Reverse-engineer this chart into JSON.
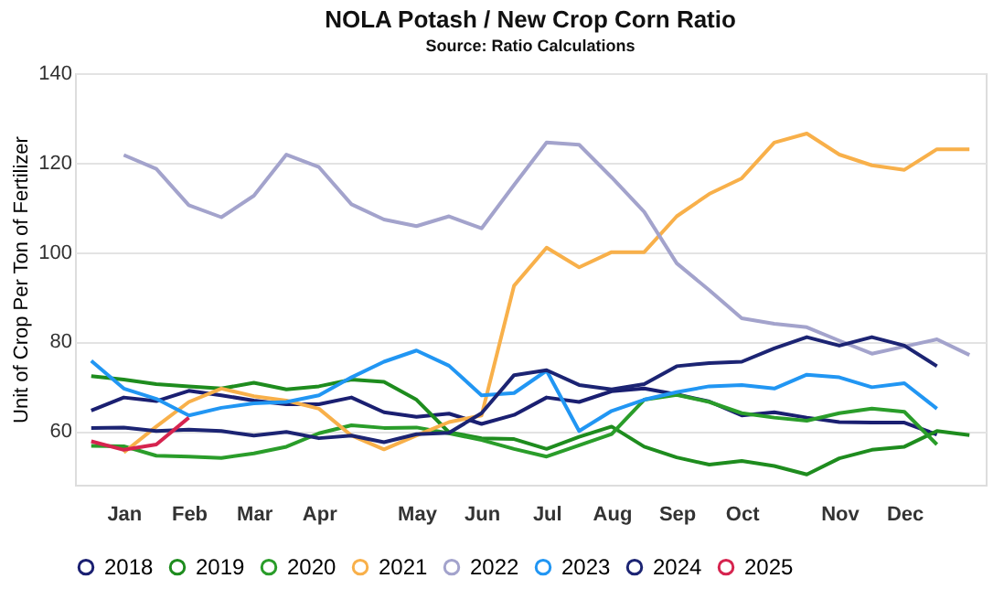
{
  "chart_data": {
    "type": "line",
    "title": "NOLA Potash / New Crop Corn Ratio",
    "subtitle": "Source: Ratio Calculations",
    "ylabel": "Unit of Crop Per Ton of Fertilizer",
    "categories": [
      null,
      "Jan",
      null,
      "Feb",
      null,
      "Mar",
      null,
      "Apr",
      null,
      null,
      "May",
      null,
      "Jun",
      null,
      "Jul",
      null,
      "Aug",
      null,
      "Sep",
      null,
      "Oct",
      null,
      null,
      "Nov",
      null,
      "Dec",
      null,
      null
    ],
    "ylim": [
      48,
      140
    ],
    "yticks": [
      60,
      80,
      100,
      120,
      140
    ],
    "grid": "y",
    "legend": "bottom",
    "marker": "none",
    "line_style": "solid",
    "series": [
      {
        "name": "2018",
        "color": "#1a1f71",
        "values": [
          64.6,
          67.5,
          66.7,
          69,
          68,
          66.8,
          66,
          66,
          67.5,
          64.2,
          63.2,
          63.9,
          61.6,
          63.6,
          67.5,
          66.5,
          68.9,
          69.5,
          68.2,
          66.6,
          63.5,
          64.2,
          63,
          62,
          61.9,
          61.9,
          59.2,
          null
        ]
      },
      {
        "name": "2019",
        "color": "#1e8c1e",
        "values": [
          72.3,
          71.5,
          70.5,
          70,
          69.5,
          70.8,
          69.3,
          70,
          71.5,
          71,
          67,
          59.7,
          58.4,
          58.2,
          56,
          58.7,
          61,
          56.5,
          54.1,
          52.5,
          53.3,
          52.2,
          50.3,
          53.9,
          55.8,
          56.5,
          60,
          59.1
        ]
      },
      {
        "name": "2020",
        "color": "#2a9d2a",
        "values": [
          56.7,
          56.6,
          54.5,
          54.3,
          54,
          55,
          56.5,
          59.5,
          61.3,
          60.7,
          60.8,
          59.5,
          58,
          56,
          54.3,
          56.8,
          59.3,
          67,
          68.1,
          66.5,
          64,
          63,
          62.3,
          64,
          65,
          64.3,
          57,
          null
        ]
      },
      {
        "name": "2021",
        "color": "#f8b04a",
        "values": [
          null,
          55.2,
          61,
          66.5,
          69.5,
          67.8,
          66.8,
          65,
          59,
          55.9,
          59,
          62,
          63.5,
          92.5,
          101,
          96.6,
          100,
          100,
          108,
          113,
          116.5,
          124.5,
          126.5,
          121.8,
          119.4,
          118.4,
          123,
          123
        ]
      },
      {
        "name": "2022",
        "color": "#a3a3cc",
        "values": [
          null,
          121.7,
          118.6,
          110.5,
          107.8,
          112.6,
          121.8,
          119,
          110.7,
          107.3,
          105.8,
          108,
          105.3,
          115,
          124.5,
          124,
          116.7,
          109,
          97.5,
          91.5,
          85.2,
          84,
          83.2,
          80.2,
          77.3,
          78.9,
          80.5,
          77
        ]
      },
      {
        "name": "2023",
        "color": "#2196f3",
        "values": [
          75.7,
          69.5,
          67.2,
          63.5,
          65.2,
          66.2,
          66.5,
          68,
          72,
          75.5,
          78,
          74.6,
          68,
          68.5,
          73.5,
          60,
          64.5,
          67,
          68.7,
          70,
          70.3,
          69.5,
          72.6,
          72,
          69.8,
          70.7,
          65,
          null
        ]
      },
      {
        "name": "2024",
        "color": "#1c2473",
        "values": [
          60.7,
          60.8,
          60,
          60.3,
          60,
          59,
          59.8,
          58.4,
          59,
          57.5,
          59.3,
          59.6,
          64,
          72.5,
          73.6,
          70.3,
          69.3,
          70.5,
          74.5,
          75.2,
          75.5,
          78.5,
          81,
          79.1,
          81,
          79.1,
          74.5,
          null
        ]
      },
      {
        "name": "2025",
        "color": "#d6244f",
        "values": [
          57.7,
          55.8,
          57,
          63,
          null,
          null,
          null,
          null,
          null,
          null,
          null,
          null,
          null,
          null,
          null,
          null,
          null,
          null,
          null,
          null,
          null,
          null,
          null,
          null,
          null,
          null,
          null,
          null
        ]
      }
    ]
  }
}
